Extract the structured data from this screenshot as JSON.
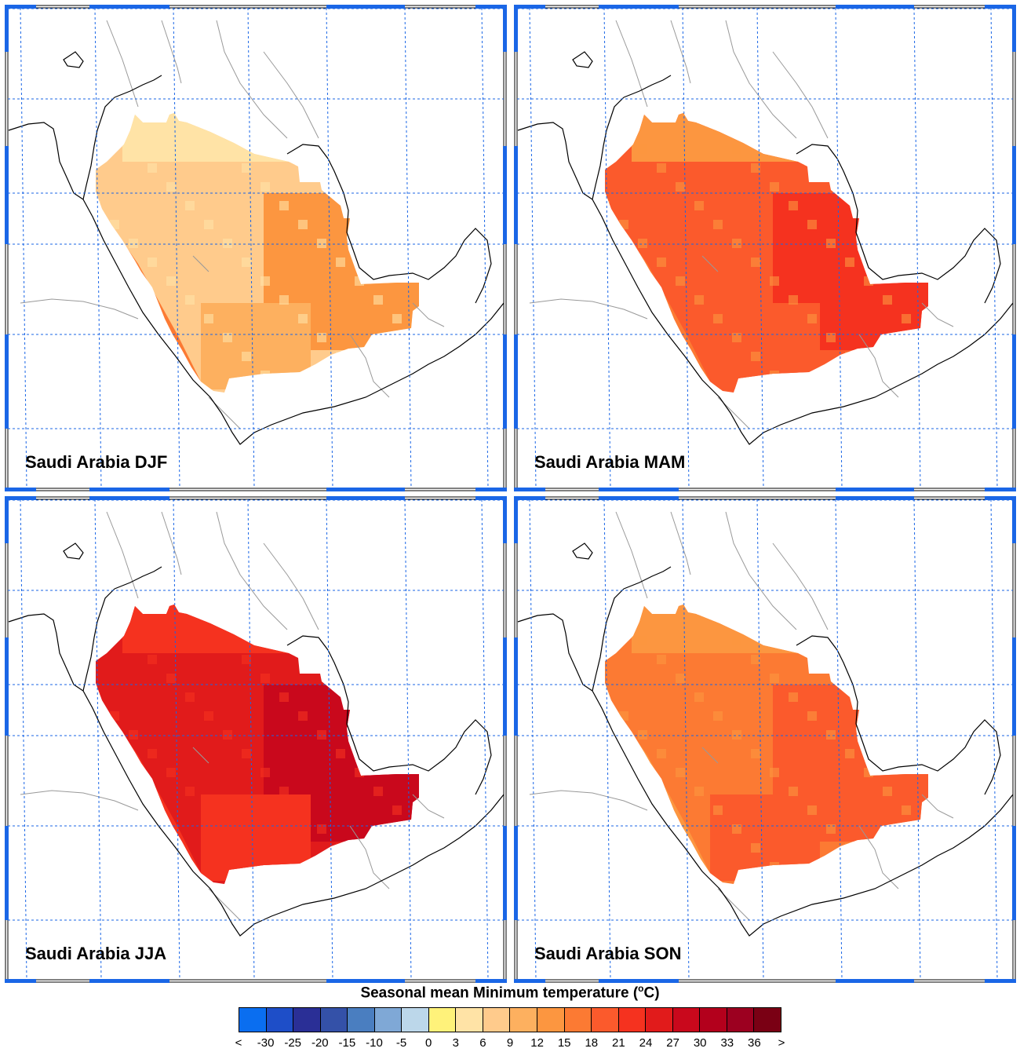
{
  "panels": [
    {
      "id": "djf",
      "title": "Saudi Arabia DJF"
    },
    {
      "id": "mam",
      "title": "Saudi Arabia MAM"
    },
    {
      "id": "jja",
      "title": "Saudi Arabia JJA"
    },
    {
      "id": "son",
      "title": "Saudi Arabia SON"
    }
  ],
  "colorbar": {
    "title": "Seasonal mean Minimum temperature (",
    "unit_sup": "o",
    "unit_tail": "C)",
    "tick_labels": [
      "<",
      "-30",
      "-25",
      "-20",
      "-15",
      "-10",
      "-5",
      "0",
      "3",
      "6",
      "9",
      "12",
      "15",
      "18",
      "21",
      "24",
      "27",
      "30",
      "33",
      "36",
      ">"
    ],
    "colors": [
      "#0a6ef0",
      "#1e4ec8",
      "#2a2f96",
      "#3451a8",
      "#4a7ec0",
      "#7fa8d6",
      "#bcd7ea",
      "#fff27a",
      "#ffe3a6",
      "#ffcb8c",
      "#fdb05f",
      "#fc9640",
      "#fc7a33",
      "#fb5a2c",
      "#f5321f",
      "#e11b1b",
      "#c9081c",
      "#b3001c",
      "#9c0020",
      "#7a0014"
    ]
  },
  "colors": {
    "grid": "#1a66e6",
    "border_blue": "#1a66e6",
    "coast": "#000000",
    "country_border": "#999999"
  },
  "seasons": {
    "djf": {
      "base": "#ffcb8c",
      "north": "#ffe3a6",
      "center": "#ffcb8c",
      "south": "#fdb05f",
      "east": "#fc9640",
      "coast": "#fc7a33"
    },
    "mam": {
      "base": "#fb5a2c",
      "north": "#fc9640",
      "center": "#fb5a2c",
      "south": "#fb5a2c",
      "east": "#f5321f",
      "coast": "#fc7a33"
    },
    "jja": {
      "base": "#e11b1b",
      "north": "#f5321f",
      "center": "#e11b1b",
      "south": "#f5321f",
      "east": "#c9081c",
      "coast": "#f5321f"
    },
    "son": {
      "base": "#fc7a33",
      "north": "#fc9640",
      "center": "#fc7a33",
      "south": "#fb5a2c",
      "east": "#fb5a2c",
      "coast": "#fc9640"
    }
  }
}
